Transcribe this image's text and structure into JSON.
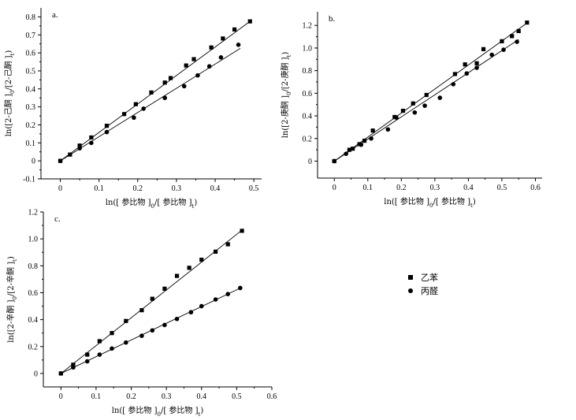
{
  "legend": {
    "placement": "right-middle",
    "entries": [
      {
        "label": "乙苯",
        "marker": "square"
      },
      {
        "label": "丙醛",
        "marker": "circle"
      }
    ]
  },
  "chart_data": [
    {
      "type": "scatter",
      "panel_label": "a.",
      "xlabel": "ln([ 参比物 ]0/[ 参比物 ]t)",
      "ylabel": "ln([2-己酮 ]0/[2-己酮 ]t)",
      "xlim": [
        -0.05,
        0.52
      ],
      "ylim": [
        -0.1,
        0.85
      ],
      "xticks": [
        "0",
        "0.1",
        "0.2",
        "0.3",
        "0.4",
        "0.5"
      ],
      "yticks": [
        "-0.1",
        "0",
        "0.1",
        "0.2",
        "0.3",
        "0.4",
        "0.5",
        "0.6",
        "0.7",
        "0.8"
      ],
      "grid": false,
      "series": [
        {
          "name": "乙苯",
          "marker": "square",
          "x": [
            0,
            0.025,
            0.05,
            0.08,
            0.12,
            0.165,
            0.195,
            0.235,
            0.27,
            0.285,
            0.325,
            0.345,
            0.39,
            0.42,
            0.45,
            0.49
          ],
          "y": [
            0,
            0.035,
            0.085,
            0.13,
            0.195,
            0.26,
            0.315,
            0.38,
            0.435,
            0.46,
            0.53,
            0.565,
            0.63,
            0.68,
            0.73,
            0.775
          ],
          "fit": [
            [
              0,
              0
            ],
            [
              0.49,
              0.775
            ]
          ]
        },
        {
          "name": "丙醛",
          "marker": "circle",
          "x": [
            0,
            0.05,
            0.08,
            0.12,
            0.19,
            0.215,
            0.27,
            0.32,
            0.355,
            0.385,
            0.415,
            0.46
          ],
          "y": [
            0,
            0.07,
            0.1,
            0.16,
            0.24,
            0.29,
            0.35,
            0.415,
            0.475,
            0.525,
            0.575,
            0.645
          ],
          "fit": [
            [
              0,
              0
            ],
            [
              0.465,
              0.625
            ]
          ]
        }
      ]
    },
    {
      "type": "scatter",
      "panel_label": "b.",
      "xlabel": "ln([ 参比物 ]0/[ 参比物 ]t)",
      "ylabel": "ln([2-庚酮 ]0/[2-庚酮 ]t)",
      "xlim": [
        -0.05,
        0.62
      ],
      "ylim": [
        -0.15,
        1.32
      ],
      "xticks": [
        "0",
        "0.1",
        "0.2",
        "0.3",
        "0.4",
        "0.5",
        "0.6"
      ],
      "yticks": [
        "0",
        "0.2",
        "0.4",
        "0.6",
        "0.8",
        "1.0",
        "1.2"
      ],
      "grid": false,
      "series": [
        {
          "name": "乙苯",
          "marker": "square",
          "x": [
            0,
            0.045,
            0.055,
            0.075,
            0.09,
            0.115,
            0.18,
            0.205,
            0.235,
            0.275,
            0.36,
            0.39,
            0.425,
            0.445,
            0.5,
            0.53,
            0.55,
            0.575
          ],
          "y": [
            0,
            0.1,
            0.11,
            0.15,
            0.18,
            0.27,
            0.39,
            0.445,
            0.51,
            0.585,
            0.77,
            0.855,
            0.865,
            0.99,
            1.06,
            1.105,
            1.15,
            1.225
          ],
          "fit": [
            [
              0,
              0
            ],
            [
              0.578,
              1.228
            ]
          ]
        },
        {
          "name": "丙醛",
          "marker": "circle",
          "x": [
            0,
            0.035,
            0.08,
            0.11,
            0.185,
            0.16,
            0.24,
            0.27,
            0.315,
            0.355,
            0.395,
            0.425,
            0.47,
            0.505,
            0.545
          ],
          "y": [
            0,
            0.065,
            0.145,
            0.2,
            0.385,
            0.28,
            0.43,
            0.49,
            0.56,
            0.68,
            0.775,
            0.825,
            0.94,
            0.985,
            1.055
          ],
          "fit": [
            [
              0,
              0
            ],
            [
              0.55,
              1.075
            ]
          ]
        }
      ]
    },
    {
      "type": "scatter",
      "panel_label": "c.",
      "xlabel": "ln([ 参比物 ]0/[ 参比物 ]t)",
      "ylabel": "ln([2-辛酮 ]0/[2-辛酮 ]t)",
      "xlim": [
        -0.05,
        0.6
      ],
      "ylim": [
        -0.1,
        1.2
      ],
      "xticks": [
        "0",
        "0.1",
        "0.2",
        "0.3",
        "0.4",
        "0.5",
        "0.6"
      ],
      "yticks": [
        "0",
        "0.2",
        "0.4",
        "0.6",
        "0.8",
        "1.0",
        "1.2"
      ],
      "grid": false,
      "series": [
        {
          "name": "乙苯",
          "marker": "square",
          "x": [
            0,
            0.035,
            0.075,
            0.11,
            0.145,
            0.185,
            0.23,
            0.26,
            0.295,
            0.33,
            0.365,
            0.4,
            0.44,
            0.475,
            0.515
          ],
          "y": [
            0,
            0.065,
            0.14,
            0.24,
            0.3,
            0.39,
            0.47,
            0.555,
            0.63,
            0.725,
            0.785,
            0.845,
            0.905,
            0.96,
            1.06
          ],
          "fit": [
            [
              0,
              0
            ],
            [
              0.515,
              1.065
            ]
          ]
        },
        {
          "name": "丙醛",
          "marker": "circle",
          "x": [
            0,
            0.035,
            0.075,
            0.11,
            0.145,
            0.185,
            0.23,
            0.26,
            0.295,
            0.33,
            0.37,
            0.4,
            0.44,
            0.475,
            0.51
          ],
          "y": [
            0,
            0.045,
            0.09,
            0.14,
            0.185,
            0.23,
            0.28,
            0.32,
            0.36,
            0.405,
            0.455,
            0.5,
            0.55,
            0.59,
            0.635
          ],
          "fit": [
            [
              0,
              0
            ],
            [
              0.515,
              0.64
            ]
          ]
        }
      ]
    }
  ]
}
